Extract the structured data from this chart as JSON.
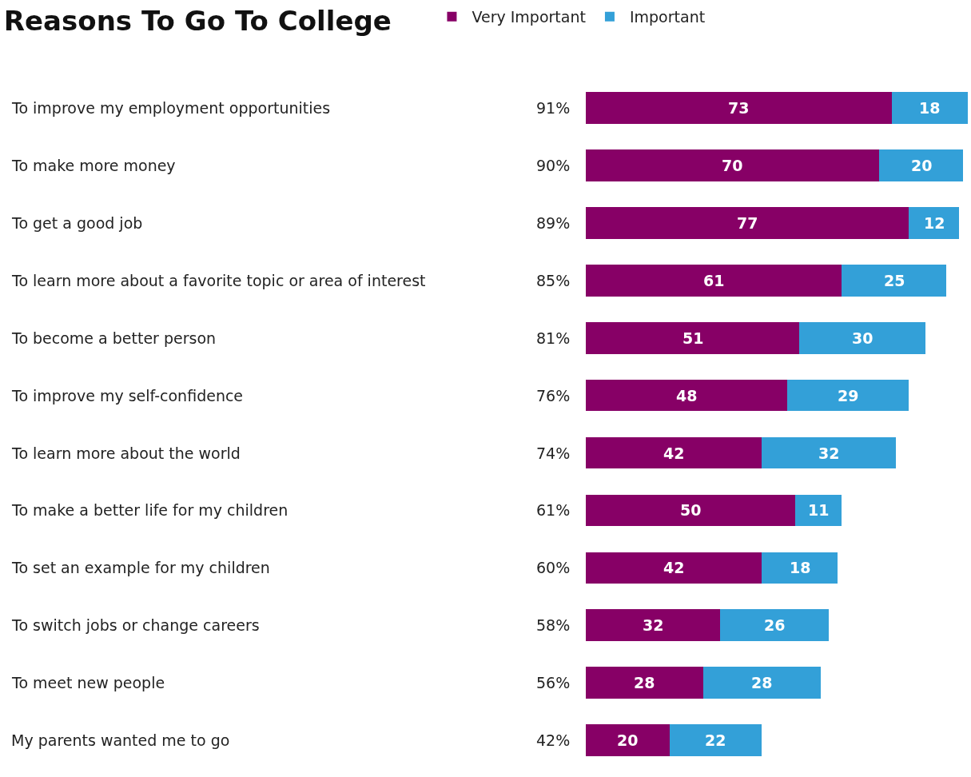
{
  "chart_data": {
    "type": "bar",
    "orientation": "horizontal",
    "stacked": true,
    "title": "Reasons To Go To College",
    "categories": [
      "To improve my employment opportunities",
      "To make more money",
      "To get a good job",
      "To learn more about a favorite topic or area of interest",
      "To become a better person",
      "To improve my self-confidence",
      "To learn more about the world",
      "To make a better life for my children",
      "To set an example for my children",
      "To switch jobs or change careers",
      "To meet new people",
      "My parents wanted me to go"
    ],
    "series": [
      {
        "name": "Very Important",
        "color": "#870066",
        "values": [
          73,
          70,
          77,
          61,
          51,
          48,
          42,
          50,
          42,
          32,
          28,
          20
        ]
      },
      {
        "name": "Important",
        "color": "#33a0d8",
        "values": [
          18,
          20,
          12,
          25,
          30,
          29,
          32,
          11,
          18,
          26,
          28,
          22
        ]
      }
    ],
    "totals": [
      "91%",
      "90%",
      "89%",
      "85%",
      "81%",
      "76%",
      "74%",
      "61%",
      "60%",
      "58%",
      "56%",
      "42%"
    ],
    "data_labels": true,
    "legend": "top"
  }
}
